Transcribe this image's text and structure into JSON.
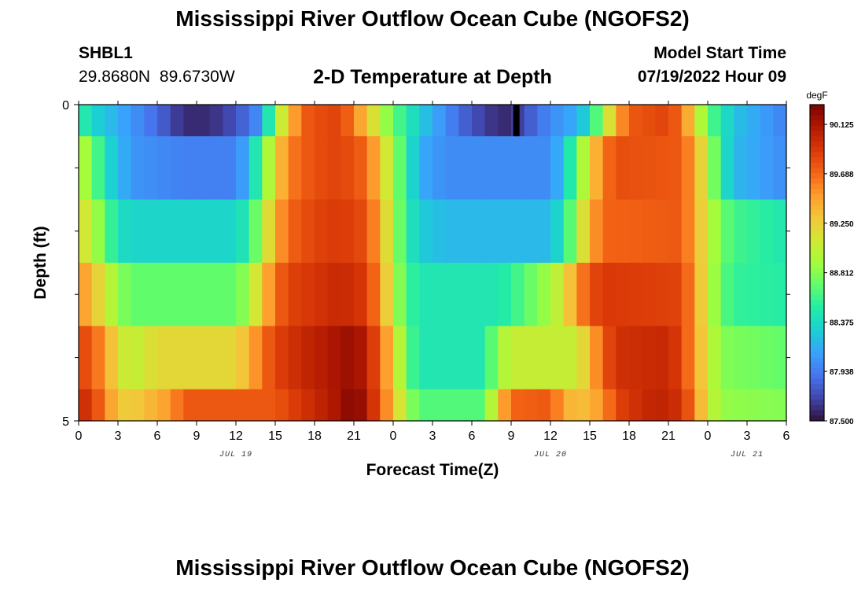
{
  "header": {
    "title": "Mississippi River Outflow Ocean Cube (NGOFS2)",
    "station_id": "SHBL1",
    "coordinates": "29.8680N  89.6730W",
    "subtitle": "2-D Temperature at Depth",
    "model_start_label": "Model Start Time",
    "model_start_value": "07/19/2022 Hour 09"
  },
  "footer": {
    "title": "Mississippi River Outflow Ocean Cube (NGOFS2)"
  },
  "chart_data": {
    "type": "heatmap",
    "title": "2-D Temperature at Depth",
    "xlabel": "Forecast Time(Z)",
    "ylabel": "Depth (ft)",
    "x_tick_labels": [
      "0",
      "3",
      "6",
      "9",
      "12",
      "15",
      "18",
      "21",
      "0",
      "3",
      "6",
      "9",
      "12",
      "15",
      "18",
      "21",
      "0",
      "3",
      "6"
    ],
    "x_range_hours": [
      0,
      54
    ],
    "date_labels": [
      {
        "label": "JUL 19",
        "hour": 12
      },
      {
        "label": "JUL 20",
        "hour": 36
      },
      {
        "label": "JUL 21",
        "hour": 51
      }
    ],
    "y_tick_labels": [
      "0",
      "5"
    ],
    "y_range": [
      0,
      5
    ],
    "colorbar": {
      "unit": "degF",
      "min": 87.5,
      "max": 90.3,
      "ticks": [
        "90.125",
        "89.688",
        "89.250",
        "88.812",
        "88.375",
        "87.938",
        "87.500"
      ],
      "colors": [
        "#30123b",
        "#4145ab",
        "#4675ed",
        "#39a2fc",
        "#1bcfd4",
        "#24eca6",
        "#61fc6c",
        "#a4fc3b",
        "#d1e834",
        "#f3c63a",
        "#fe9b2d",
        "#f36315",
        "#d93807",
        "#b11901",
        "#7a0403"
      ]
    },
    "layers": [
      {
        "depth_range": [
          0,
          0.5
        ],
        "profile": [
          [
            0,
            88.55
          ],
          [
            1.5,
            88.3
          ],
          [
            4,
            88.05
          ],
          [
            6,
            87.85
          ],
          [
            8,
            87.6
          ],
          [
            10,
            87.6
          ],
          [
            12,
            87.75
          ],
          [
            14,
            88.05
          ],
          [
            15,
            88.85
          ],
          [
            16,
            89.3
          ],
          [
            17,
            89.7
          ],
          [
            18,
            89.8
          ],
          [
            20,
            89.85
          ],
          [
            21,
            89.6
          ],
          [
            22,
            89.3
          ],
          [
            24,
            88.7
          ],
          [
            26,
            88.3
          ],
          [
            28,
            88.0
          ],
          [
            30,
            87.75
          ],
          [
            32,
            87.6
          ],
          [
            33,
            87.6
          ],
          [
            34,
            87.75
          ],
          [
            36,
            88.0
          ],
          [
            38,
            88.15
          ],
          [
            39,
            88.4
          ],
          [
            40,
            88.9
          ],
          [
            41,
            89.4
          ],
          [
            42,
            89.75
          ],
          [
            45,
            89.85
          ],
          [
            46,
            89.65
          ],
          [
            47,
            89.2
          ],
          [
            48,
            88.7
          ],
          [
            50,
            88.25
          ],
          [
            54,
            87.95
          ]
        ]
      },
      {
        "depth_range": [
          0.5,
          1.5
        ],
        "profile": [
          [
            0,
            89.0
          ],
          [
            1,
            88.8
          ],
          [
            2,
            88.4
          ],
          [
            4,
            88.05
          ],
          [
            8,
            87.95
          ],
          [
            12,
            87.95
          ],
          [
            13,
            88.2
          ],
          [
            14,
            88.7
          ],
          [
            15,
            89.2
          ],
          [
            16,
            89.6
          ],
          [
            18,
            89.8
          ],
          [
            20,
            89.85
          ],
          [
            22,
            89.7
          ],
          [
            23,
            89.3
          ],
          [
            24,
            88.9
          ],
          [
            25,
            88.5
          ],
          [
            26,
            88.15
          ],
          [
            28,
            88.0
          ],
          [
            36,
            88.0
          ],
          [
            37,
            88.25
          ],
          [
            38,
            88.7
          ],
          [
            39,
            89.2
          ],
          [
            40,
            89.6
          ],
          [
            41,
            89.8
          ],
          [
            46,
            89.75
          ],
          [
            47,
            89.45
          ],
          [
            48,
            89.0
          ],
          [
            49,
            88.5
          ],
          [
            50,
            88.2
          ],
          [
            54,
            88.0
          ]
        ]
      },
      {
        "depth_range": [
          1.5,
          2.5
        ],
        "profile": [
          [
            0,
            89.2
          ],
          [
            1,
            89.0
          ],
          [
            2,
            88.7
          ],
          [
            3,
            88.4
          ],
          [
            4,
            88.35
          ],
          [
            12,
            88.35
          ],
          [
            13,
            88.5
          ],
          [
            14,
            88.95
          ],
          [
            15,
            89.4
          ],
          [
            16,
            89.7
          ],
          [
            18,
            89.85
          ],
          [
            20,
            89.9
          ],
          [
            22,
            89.8
          ],
          [
            23,
            89.4
          ],
          [
            24,
            88.95
          ],
          [
            25,
            88.5
          ],
          [
            26,
            88.3
          ],
          [
            28,
            88.2
          ],
          [
            36,
            88.2
          ],
          [
            37,
            88.45
          ],
          [
            38,
            88.9
          ],
          [
            39,
            89.4
          ],
          [
            40,
            89.7
          ],
          [
            46,
            89.75
          ],
          [
            47,
            89.45
          ],
          [
            48,
            89.05
          ],
          [
            49,
            88.75
          ],
          [
            50,
            88.6
          ],
          [
            54,
            88.45
          ]
        ]
      },
      {
        "depth_range": [
          2.5,
          3.5
        ],
        "profile": [
          [
            0,
            89.55
          ],
          [
            1,
            89.35
          ],
          [
            2,
            89.1
          ],
          [
            3,
            88.85
          ],
          [
            4,
            88.7
          ],
          [
            12,
            88.7
          ],
          [
            13,
            88.9
          ],
          [
            14,
            89.3
          ],
          [
            15,
            89.65
          ],
          [
            16,
            89.85
          ],
          [
            20,
            90.0
          ],
          [
            22,
            89.9
          ],
          [
            23,
            89.5
          ],
          [
            24,
            89.0
          ],
          [
            25,
            88.6
          ],
          [
            26,
            88.45
          ],
          [
            32,
            88.45
          ],
          [
            34,
            88.65
          ],
          [
            35,
            88.8
          ],
          [
            36,
            88.9
          ],
          [
            37,
            89.15
          ],
          [
            38,
            89.5
          ],
          [
            39,
            89.8
          ],
          [
            40,
            89.9
          ],
          [
            46,
            89.85
          ],
          [
            47,
            89.5
          ],
          [
            48,
            89.05
          ],
          [
            49,
            88.7
          ],
          [
            50,
            88.55
          ],
          [
            54,
            88.5
          ]
        ]
      },
      {
        "depth_range": [
          3.5,
          4.5
        ],
        "profile": [
          [
            0,
            89.85
          ],
          [
            1,
            89.75
          ],
          [
            2,
            89.5
          ],
          [
            3,
            89.15
          ],
          [
            4,
            89.0
          ],
          [
            6,
            89.2
          ],
          [
            12,
            89.2
          ],
          [
            13,
            89.4
          ],
          [
            14,
            89.65
          ],
          [
            15,
            89.85
          ],
          [
            17,
            90.0
          ],
          [
            21,
            90.2
          ],
          [
            22,
            90.05
          ],
          [
            23,
            89.7
          ],
          [
            24,
            89.25
          ],
          [
            25,
            88.7
          ],
          [
            26,
            88.45
          ],
          [
            31,
            88.45
          ],
          [
            32,
            88.9
          ],
          [
            33,
            89.05
          ],
          [
            38,
            89.05
          ],
          [
            39,
            89.35
          ],
          [
            40,
            89.75
          ],
          [
            41,
            89.95
          ],
          [
            45,
            90.0
          ],
          [
            46,
            89.85
          ],
          [
            47,
            89.5
          ],
          [
            48,
            89.1
          ],
          [
            49,
            88.8
          ],
          [
            54,
            88.7
          ]
        ]
      },
      {
        "depth_range": [
          4.5,
          5.0
        ],
        "profile": [
          [
            0,
            90.0
          ],
          [
            1,
            89.9
          ],
          [
            2,
            89.6
          ],
          [
            3,
            89.3
          ],
          [
            4,
            89.25
          ],
          [
            7,
            89.5
          ],
          [
            8,
            89.75
          ],
          [
            15,
            89.75
          ],
          [
            16,
            89.85
          ],
          [
            18,
            90.0
          ],
          [
            20,
            90.15
          ],
          [
            21,
            90.3
          ],
          [
            22,
            90.1
          ],
          [
            23,
            89.75
          ],
          [
            24,
            89.35
          ],
          [
            25,
            88.9
          ],
          [
            26,
            88.65
          ],
          [
            31,
            88.65
          ],
          [
            32,
            89.3
          ],
          [
            33,
            89.7
          ],
          [
            36,
            89.75
          ],
          [
            37,
            89.45
          ],
          [
            38,
            89.3
          ],
          [
            40,
            89.5
          ],
          [
            41,
            89.85
          ],
          [
            44,
            90.05
          ],
          [
            46,
            89.95
          ],
          [
            47,
            89.6
          ],
          [
            48,
            89.1
          ],
          [
            49,
            88.85
          ],
          [
            54,
            88.8
          ]
        ]
      }
    ],
    "missing_cell": {
      "hour": 33.4,
      "depth_range": [
        0,
        0.5
      ]
    }
  }
}
